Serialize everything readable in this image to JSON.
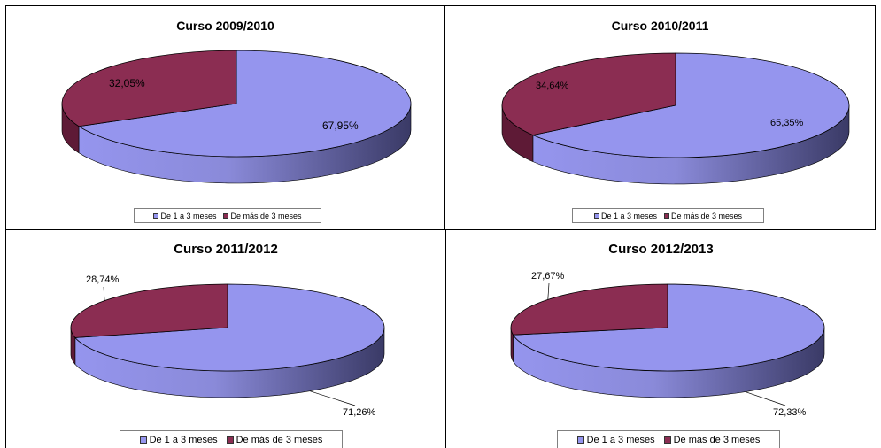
{
  "colors": {
    "series_a": "#9595ee",
    "series_a_dark": "#3a3a66",
    "series_b": "#8b2d52",
    "series_b_dark": "#5e1a36",
    "border": "#000000"
  },
  "chart_data": [
    {
      "type": "pie",
      "title": "Curso 2009/2010",
      "categories": [
        "De 1 a 3 meses",
        "De más de 3 meses"
      ],
      "values": [
        67.95,
        32.05
      ],
      "data_labels": [
        "67,95%",
        "32,05%"
      ],
      "legend": "bottom"
    },
    {
      "type": "pie",
      "title": "Curso 2010/2011",
      "categories": [
        "De 1 a 3 meses",
        "De más de 3 meses"
      ],
      "values": [
        65.35,
        34.64
      ],
      "data_labels": [
        "65,35%",
        "34,64%"
      ],
      "legend": "bottom"
    },
    {
      "type": "pie",
      "title": "Curso 2011/2012",
      "categories": [
        "De 1 a 3 meses",
        "De más de 3 meses"
      ],
      "values": [
        71.26,
        28.74
      ],
      "data_labels": [
        "71,26%",
        "28,74%"
      ],
      "legend": "bottom"
    },
    {
      "type": "pie",
      "title": "Curso 2012/2013",
      "categories": [
        "De 1 a 3 meses",
        "De más de 3 meses"
      ],
      "values": [
        72.33,
        27.67
      ],
      "data_labels": [
        "72,33%",
        "27,67%"
      ],
      "legend": "bottom"
    }
  ]
}
